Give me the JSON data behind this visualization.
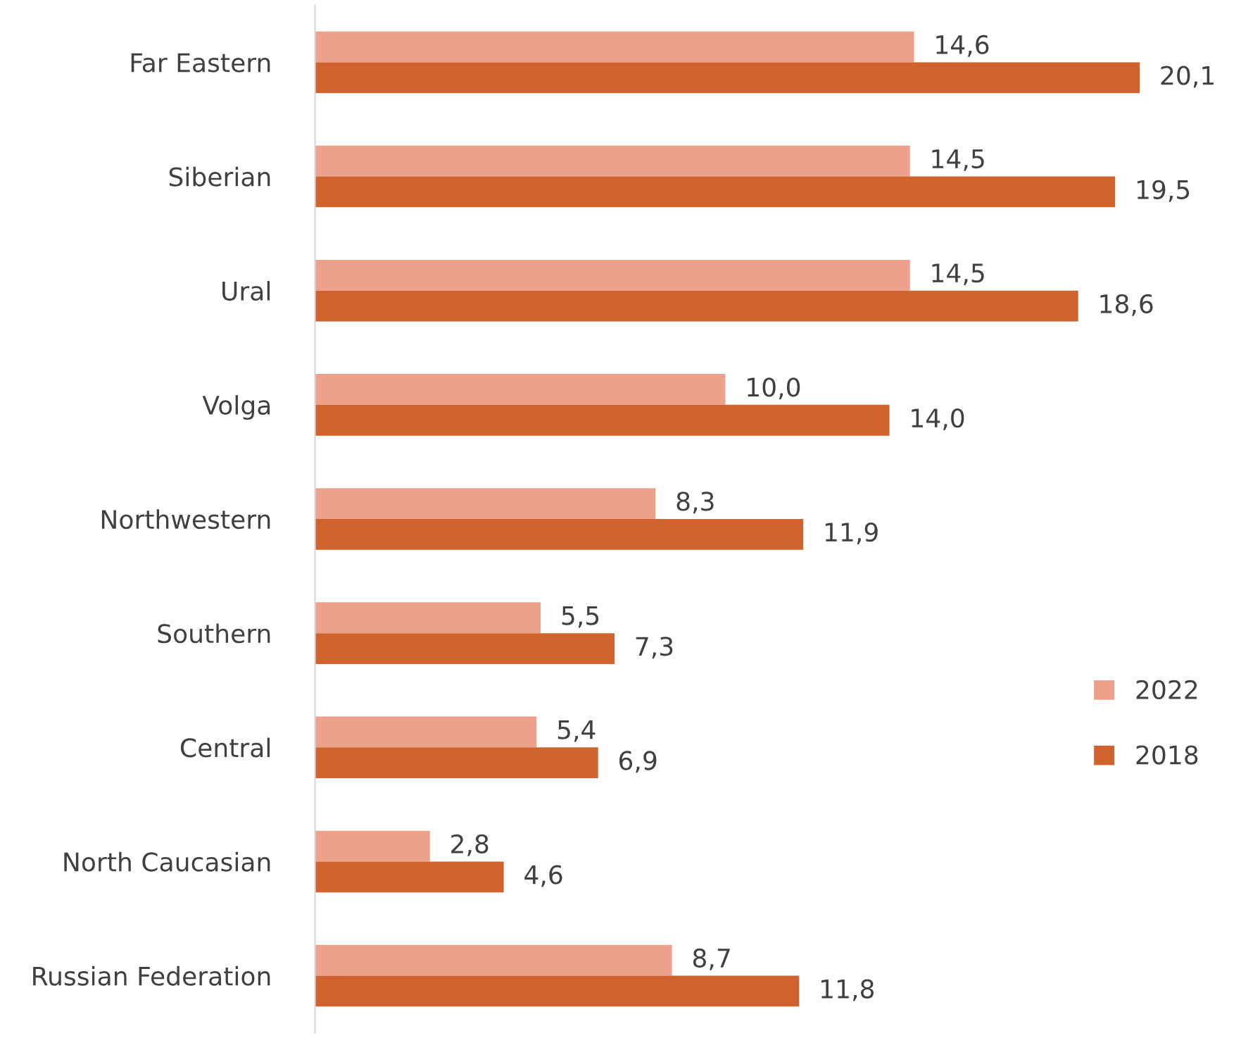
{
  "chart_data": {
    "type": "bar",
    "orientation": "horizontal",
    "categories": [
      "Far Eastern",
      "Siberian",
      "Ural",
      "Volga",
      "Northwestern",
      "Southern",
      "Central",
      "North Caucasian",
      "Russian Federation"
    ],
    "series": [
      {
        "name": "2022",
        "color": "#eda08a",
        "values": [
          14.6,
          14.5,
          14.5,
          10.0,
          8.3,
          5.5,
          5.4,
          2.8,
          8.7
        ],
        "value_labels": [
          "14,6",
          "14,5",
          "14,5",
          "10,0",
          "8,3",
          "5,5",
          "5,4",
          "2,8",
          "8,7"
        ]
      },
      {
        "name": "2018",
        "color": "#d0632d",
        "values": [
          20.1,
          19.5,
          18.6,
          14.0,
          11.9,
          7.3,
          6.9,
          4.6,
          11.8
        ],
        "value_labels": [
          "20,1",
          "19,5",
          "18,6",
          "14,0",
          "11,9",
          "7,3",
          "6,9",
          "4,6",
          "11,8"
        ]
      }
    ],
    "legend": "right",
    "grid": false
  }
}
